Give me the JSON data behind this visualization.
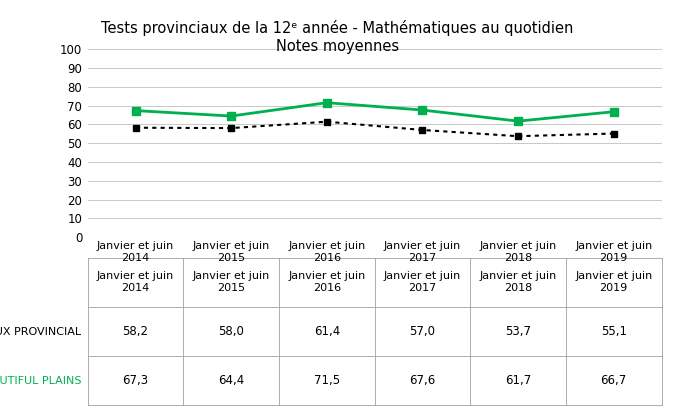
{
  "title_line1": "Tests provinciaux de la 12ᵉ année - Mathématiques au quotidien",
  "title_line2": "Notes moyennes",
  "x_labels": [
    "Janvier et juin\n2014",
    "Janvier et juin\n2015",
    "Janvier et juin\n2016",
    "Janvier et juin\n2017",
    "Janvier et juin\n2018",
    "Janvier et juin\n2019"
  ],
  "provincial_values": [
    58.2,
    58.0,
    61.4,
    57.0,
    53.7,
    55.1
  ],
  "beautiful_plains_values": [
    67.3,
    64.4,
    71.5,
    67.6,
    61.7,
    66.7
  ],
  "provincial_label": "•– TAUX PROVINCIAL",
  "beautiful_plains_label": "■– BEAUTIFUL PLAINS",
  "provincial_color": "#000000",
  "beautiful_plains_color": "#00b050",
  "ylim": [
    0,
    100
  ],
  "yticks": [
    0,
    10,
    20,
    30,
    40,
    50,
    60,
    70,
    80,
    90,
    100
  ],
  "provincial_table_values": [
    "58,2",
    "58,0",
    "61,4",
    "57,0",
    "53,7",
    "55,1"
  ],
  "beautiful_plains_table_values": [
    "67,3",
    "64,4",
    "71,5",
    "67,6",
    "61,7",
    "66,7"
  ],
  "background_color": "#ffffff",
  "grid_color": "#c8c8c8",
  "title_fontsize": 10.5,
  "tick_fontsize": 8.5,
  "table_fontsize": 8.5,
  "legend_fontsize": 8.0
}
